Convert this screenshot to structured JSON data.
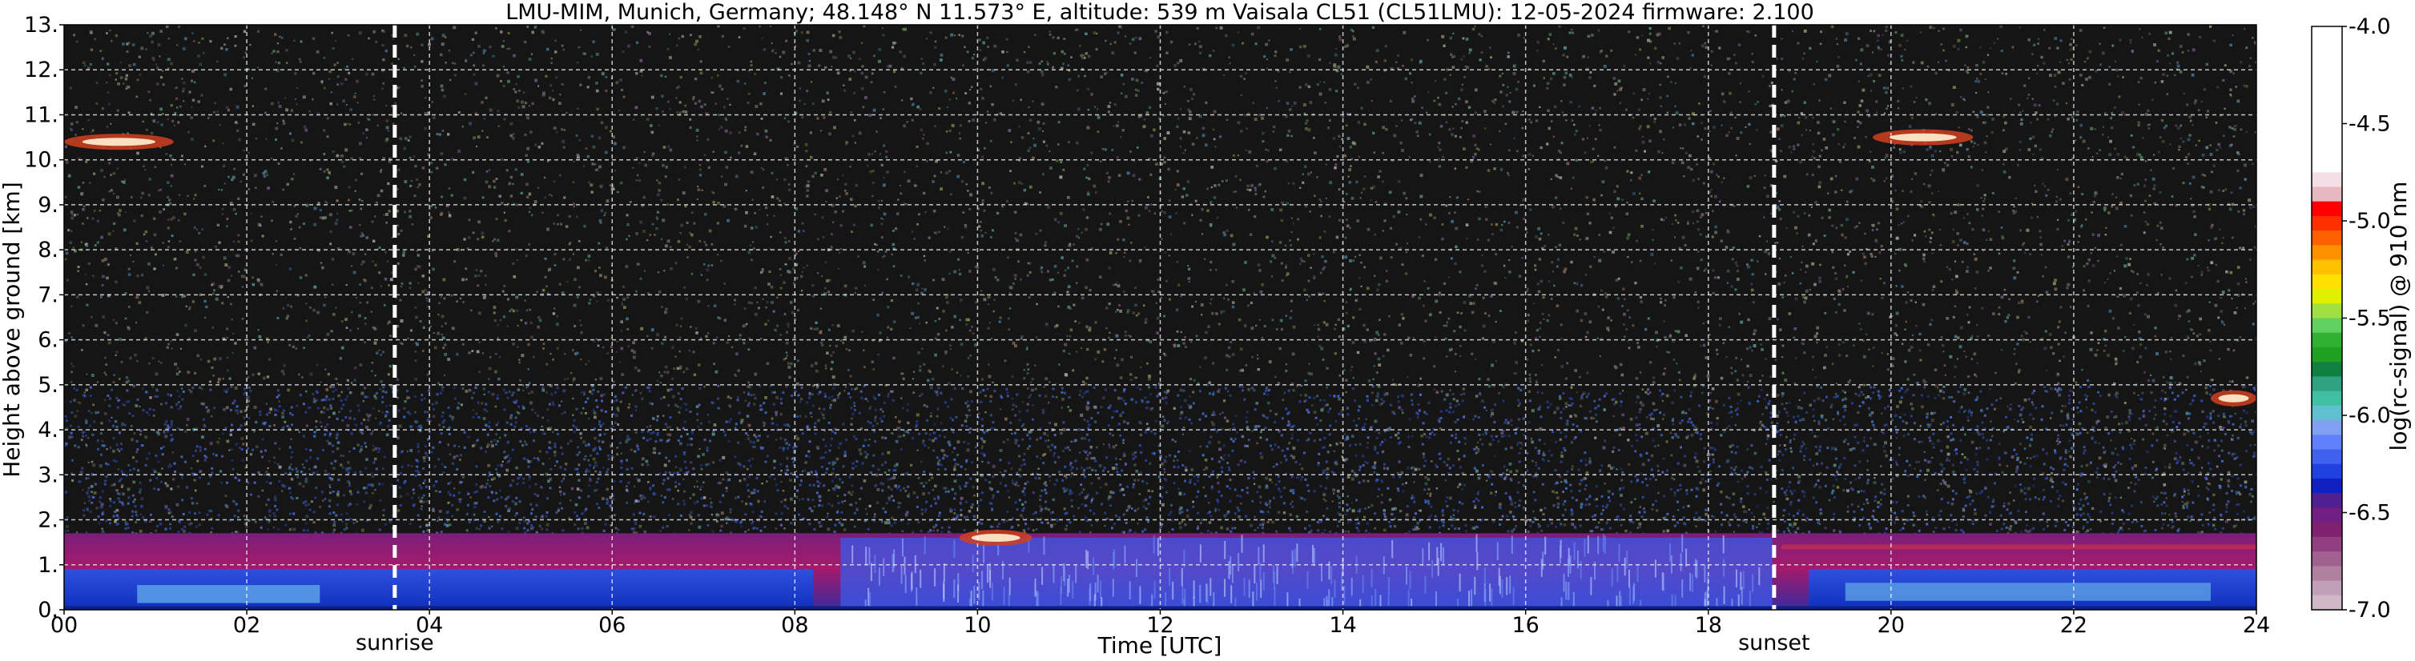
{
  "chart_data": {
    "type": "heatmap",
    "title": "LMU-MIM, Munich, Germany; 48.148° N 11.573° E, altitude: 539 m    Vaisala CL51 (CL51LMU): 12-05-2024    firmware: 2.100",
    "xlabel": "Time [UTC]",
    "ylabel": "Height above ground [km]",
    "xlim": [
      0,
      24
    ],
    "ylim": [
      0,
      13
    ],
    "x_ticks": [
      "00",
      "02",
      "04",
      "06",
      "08",
      "10",
      "12",
      "14",
      "16",
      "18",
      "20",
      "22",
      "24"
    ],
    "y_ticks": [
      "0.",
      "1.",
      "2.",
      "3.",
      "4.",
      "5.",
      "6.",
      "7.",
      "8.",
      "9.",
      "10.",
      "11.",
      "12.",
      "13."
    ],
    "grid": true,
    "colorbar": {
      "label": "log(rc-signal) @ 910 nm",
      "range": [
        -7.0,
        -4.0
      ],
      "ticks": [
        "-4.0",
        "-4.5",
        "-5.0",
        "-5.5",
        "-6.0",
        "-6.5",
        "-7.0"
      ]
    },
    "events": [
      {
        "name": "sunrise",
        "time_utc": 3.62
      },
      {
        "name": "sunset",
        "time_utc": 18.72
      }
    ],
    "features": [
      {
        "kind": "boundary-layer aerosol",
        "height_km_top": 1.7
      },
      {
        "kind": "cirrus",
        "time_utc": [
          0,
          1.2
        ],
        "height_km": 10.4
      },
      {
        "kind": "cirrus",
        "time_utc": [
          19.8,
          20.9
        ],
        "height_km": 10.5
      },
      {
        "kind": "cloud",
        "time_utc": [
          23.5,
          24
        ],
        "height_km": 4.7
      },
      {
        "kind": "clouds",
        "time_utc": [
          9.8,
          10.6
        ],
        "height_km": 1.6
      }
    ]
  }
}
